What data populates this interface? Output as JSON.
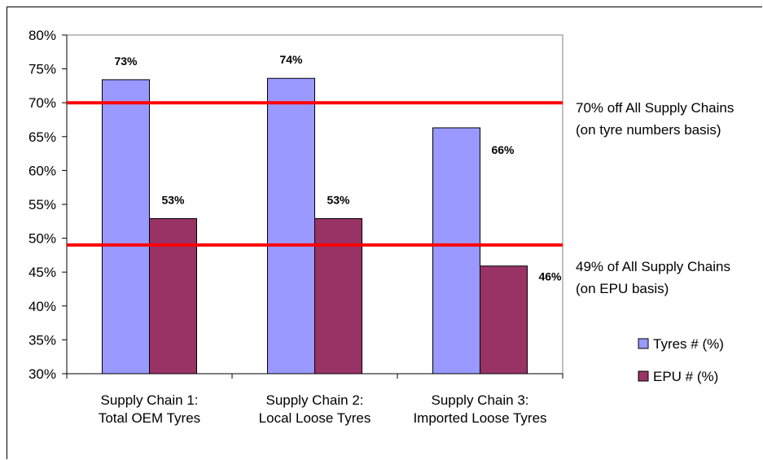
{
  "chart_data": {
    "type": "bar",
    "categories": [
      [
        "Supply Chain 1:",
        "Total OEM Tyres"
      ],
      [
        "Supply Chain 2:",
        "Local Loose Tyres"
      ],
      [
        "Supply Chain 3:",
        "Imported Loose Tyres"
      ]
    ],
    "series": [
      {
        "name": "Tyres # (%)",
        "color": "#9999ff",
        "values": [
          73.4,
          73.6,
          66.3
        ],
        "labels": [
          "73%",
          "74%",
          "66%"
        ]
      },
      {
        "name": "EPU # (%)",
        "color": "#993366",
        "values": [
          52.9,
          52.9,
          45.9
        ],
        "labels": [
          "53%",
          "53%",
          "46%"
        ]
      }
    ],
    "ylim": [
      30,
      80
    ],
    "yticks": [
      30,
      35,
      40,
      45,
      50,
      55,
      60,
      65,
      70,
      75,
      80
    ],
    "ytick_labels": [
      "30%",
      "35%",
      "40%",
      "45%",
      "50%",
      "55%",
      "60%",
      "65%",
      "70%",
      "75%",
      "80%"
    ],
    "reference_lines": [
      {
        "value": 70,
        "color": "#ff0000",
        "label": [
          "70% off All Supply Chains",
          "(on tyre numbers basis)"
        ]
      },
      {
        "value": 49,
        "color": "#ff0000",
        "label": [
          "49% of All Supply Chains",
          "(on EPU basis)"
        ]
      }
    ],
    "legend_position": "right",
    "grid": false,
    "plot_background": "#ffffff"
  }
}
